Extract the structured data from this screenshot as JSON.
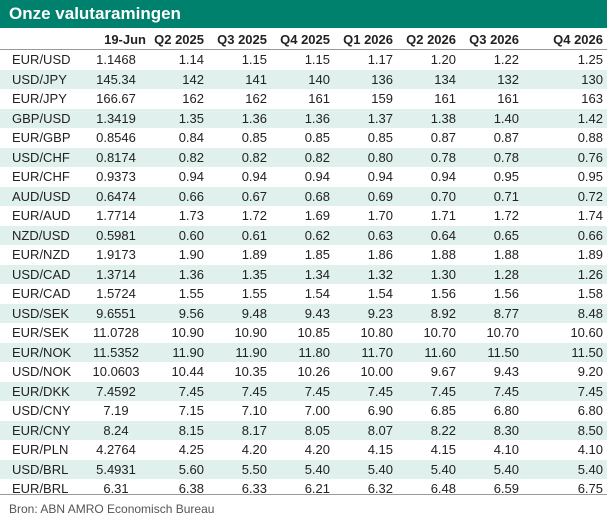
{
  "title": "Onze valutaramingen",
  "colors": {
    "title_bg": "#00816d",
    "title_fg": "#ffffff",
    "stripe": "#dff0ed"
  },
  "table": {
    "headers": [
      "",
      "19-Jun",
      "Q2 2025",
      "Q3 2025",
      "Q4 2025",
      "Q1 2026",
      "Q2 2026",
      "Q3 2026",
      "Q4 2026"
    ],
    "rows": [
      [
        "EUR/USD",
        "1.1468",
        "1.14",
        "1.15",
        "1.15",
        "1.17",
        "1.20",
        "1.22",
        "1.25"
      ],
      [
        "USD/JPY",
        "145.34",
        "142",
        "141",
        "140",
        "136",
        "134",
        "132",
        "130"
      ],
      [
        "EUR/JPY",
        "166.67",
        "162",
        "162",
        "161",
        "159",
        "161",
        "161",
        "163"
      ],
      [
        "GBP/USD",
        "1.3419",
        "1.35",
        "1.36",
        "1.36",
        "1.37",
        "1.38",
        "1.40",
        "1.42"
      ],
      [
        "EUR/GBP",
        "0.8546",
        "0.84",
        "0.85",
        "0.85",
        "0.85",
        "0.87",
        "0.87",
        "0.88"
      ],
      [
        "USD/CHF",
        "0.8174",
        "0.82",
        "0.82",
        "0.82",
        "0.80",
        "0.78",
        "0.78",
        "0.76"
      ],
      [
        "EUR/CHF",
        "0.9373",
        "0.94",
        "0.94",
        "0.94",
        "0.94",
        "0.94",
        "0.95",
        "0.95"
      ],
      [
        "AUD/USD",
        "0.6474",
        "0.66",
        "0.67",
        "0.68",
        "0.69",
        "0.70",
        "0.71",
        "0.72"
      ],
      [
        "EUR/AUD",
        "1.7714",
        "1.73",
        "1.72",
        "1.69",
        "1.70",
        "1.71",
        "1.72",
        "1.74"
      ],
      [
        "NZD/USD",
        "0.5981",
        "0.60",
        "0.61",
        "0.62",
        "0.63",
        "0.64",
        "0.65",
        "0.66"
      ],
      [
        "EUR/NZD",
        "1.9173",
        "1.90",
        "1.89",
        "1.85",
        "1.86",
        "1.88",
        "1.88",
        "1.89"
      ],
      [
        "USD/CAD",
        "1.3714",
        "1.36",
        "1.35",
        "1.34",
        "1.32",
        "1.30",
        "1.28",
        "1.26"
      ],
      [
        "EUR/CAD",
        "1.5724",
        "1.55",
        "1.55",
        "1.54",
        "1.54",
        "1.56",
        "1.56",
        "1.58"
      ],
      [
        "USD/SEK",
        "9.6551",
        "9.56",
        "9.48",
        "9.43",
        "9.23",
        "8.92",
        "8.77",
        "8.48"
      ],
      [
        "EUR/SEK",
        "11.0728",
        "10.90",
        "10.90",
        "10.85",
        "10.80",
        "10.70",
        "10.70",
        "10.60"
      ],
      [
        "EUR/NOK",
        "11.5352",
        "11.90",
        "11.90",
        "11.80",
        "11.70",
        "11.60",
        "11.50",
        "11.50"
      ],
      [
        "USD/NOK",
        "10.0603",
        "10.44",
        "10.35",
        "10.26",
        "10.00",
        "9.67",
        "9.43",
        "9.20"
      ],
      [
        "EUR/DKK",
        "7.4592",
        "7.45",
        "7.45",
        "7.45",
        "7.45",
        "7.45",
        "7.45",
        "7.45"
      ],
      [
        "USD/CNY",
        "7.19",
        "7.15",
        "7.10",
        "7.00",
        "6.90",
        "6.85",
        "6.80",
        "6.80"
      ],
      [
        "EUR/CNY",
        "8.24",
        "8.15",
        "8.17",
        "8.05",
        "8.07",
        "8.22",
        "8.30",
        "8.50"
      ],
      [
        "EUR/PLN",
        "4.2764",
        "4.25",
        "4.20",
        "4.20",
        "4.15",
        "4.15",
        "4.10",
        "4.10"
      ],
      [
        "USD/BRL",
        "5.4931",
        "5.60",
        "5.50",
        "5.40",
        "5.40",
        "5.40",
        "5.40",
        "5.40"
      ],
      [
        "EUR/BRL",
        "6.31",
        "6.38",
        "6.33",
        "6.21",
        "6.32",
        "6.48",
        "6.59",
        "6.75"
      ]
    ]
  },
  "source": "Bron: ABN AMRO Economisch Bureau"
}
